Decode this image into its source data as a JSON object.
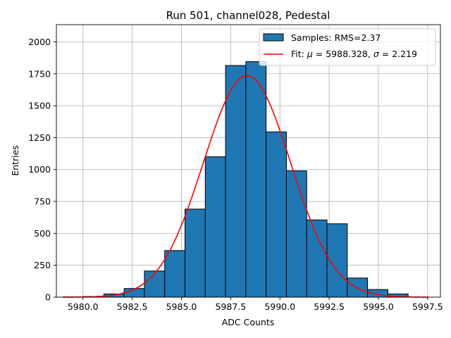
{
  "chart_data": {
    "type": "bar",
    "title": "Run 501, channel028, Pedestal",
    "xlabel": "ADC Counts",
    "ylabel": "Entries",
    "xlim": [
      5978.65,
      5998.15
    ],
    "ylim": [
      0,
      2135
    ],
    "xticks": [
      5980.0,
      5982.5,
      5985.0,
      5987.5,
      5990.0,
      5992.5,
      5995.0,
      5997.5
    ],
    "xtick_labels": [
      "5980.0",
      "5982.5",
      "5985.0",
      "5987.5",
      "5990.0",
      "5992.5",
      "5995.0",
      "5997.5"
    ],
    "yticks": [
      0,
      250,
      500,
      750,
      1000,
      1250,
      1500,
      1750,
      2000
    ],
    "ytick_labels": [
      "0",
      "250",
      "500",
      "750",
      "1000",
      "1250",
      "1500",
      "1750",
      "2000"
    ],
    "grid": true,
    "legend_position": "top-right",
    "histogram": {
      "name": "Samples: RMS=2.37",
      "color": "#1f77b4",
      "bin_edges": [
        5979.0,
        5980.03,
        5981.06,
        5982.09,
        5983.12,
        5984.15,
        5985.18,
        5986.21,
        5987.24,
        5988.27,
        5989.3,
        5990.33,
        5991.36,
        5992.39,
        5993.42,
        5994.45,
        5995.48,
        5996.51,
        5997.54
      ],
      "counts": [
        2,
        5,
        25,
        68,
        205,
        365,
        690,
        1100,
        1815,
        1845,
        1295,
        990,
        605,
        575,
        150,
        60,
        25,
        0
      ]
    },
    "fit": {
      "name_prefix": "Fit: ",
      "mu_symbol": "μ",
      "sigma_symbol": "σ",
      "mu_text": " = 5988.328, ",
      "sigma_text": " = 2.219",
      "color": "#ff0000",
      "mu": 5988.328,
      "sigma": 2.219,
      "amplitude": 1735,
      "x_range": [
        5979.0,
        5997.54
      ]
    }
  }
}
